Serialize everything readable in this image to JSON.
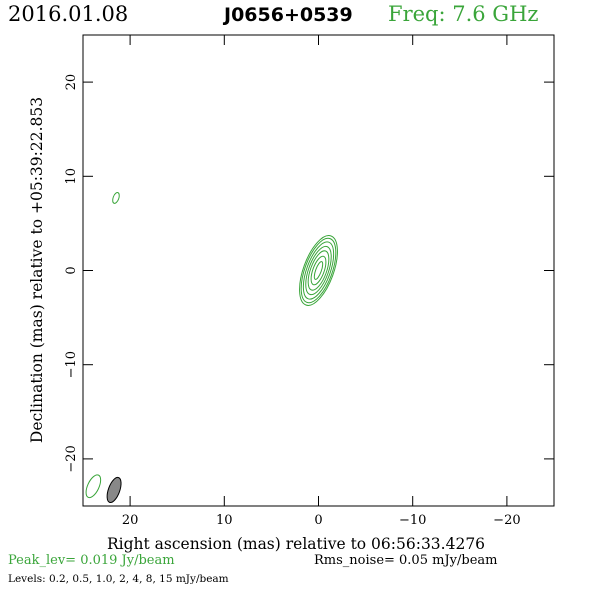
{
  "header": {
    "date": "2016.01.08",
    "source": "J0656+0539",
    "freq": "Freq: 7.6 GHz"
  },
  "footer": {
    "peak": "Peak_lev=  0.019 Jy/beam",
    "rms": "Rms_noise= 0.05 mJy/beam",
    "levels": "Levels: 0.2,  0.5,  1.0,    2,    4,    8,   15 mJy/beam"
  },
  "colors": {
    "contour": "#3aa53a",
    "axis": "#000000",
    "beam_fill": "#888888"
  },
  "chart_data": {
    "type": "contour",
    "xlabel": "Right ascension (mas) relative to 06:56:33.4276",
    "ylabel": "Declination (mas) relative to +05:39:22.853",
    "xlim": [
      25,
      -25
    ],
    "ylim": [
      -25,
      25
    ],
    "xticks": [
      20,
      10,
      0,
      -10,
      -20
    ],
    "yticks": [
      -20,
      -10,
      0,
      10,
      20
    ],
    "xtick_labels": [
      "20",
      "10",
      "0",
      "−10",
      "−20"
    ],
    "ytick_labels": [
      "−20",
      "−10",
      "0",
      "10",
      "20"
    ],
    "source_contours": {
      "center": [
        0.0,
        0.0
      ],
      "pa_deg": 20,
      "semi_minor": [
        0.3,
        0.6,
        0.85,
        1.05,
        1.25,
        1.45,
        1.6
      ],
      "semi_major": [
        1.0,
        1.6,
        2.2,
        2.7,
        3.2,
        3.6,
        3.9
      ]
    },
    "extra_contours": [
      {
        "x": 21.5,
        "y": 7.7,
        "a": 0.6,
        "b": 0.3,
        "pa_deg": 20
      },
      {
        "x": 23.9,
        "y": -22.9,
        "a": 1.3,
        "b": 0.6,
        "pa_deg": 25
      }
    ],
    "beam": {
      "x": 21.7,
      "y": -23.3,
      "a": 1.4,
      "b": 0.6,
      "pa_deg": 20
    }
  }
}
